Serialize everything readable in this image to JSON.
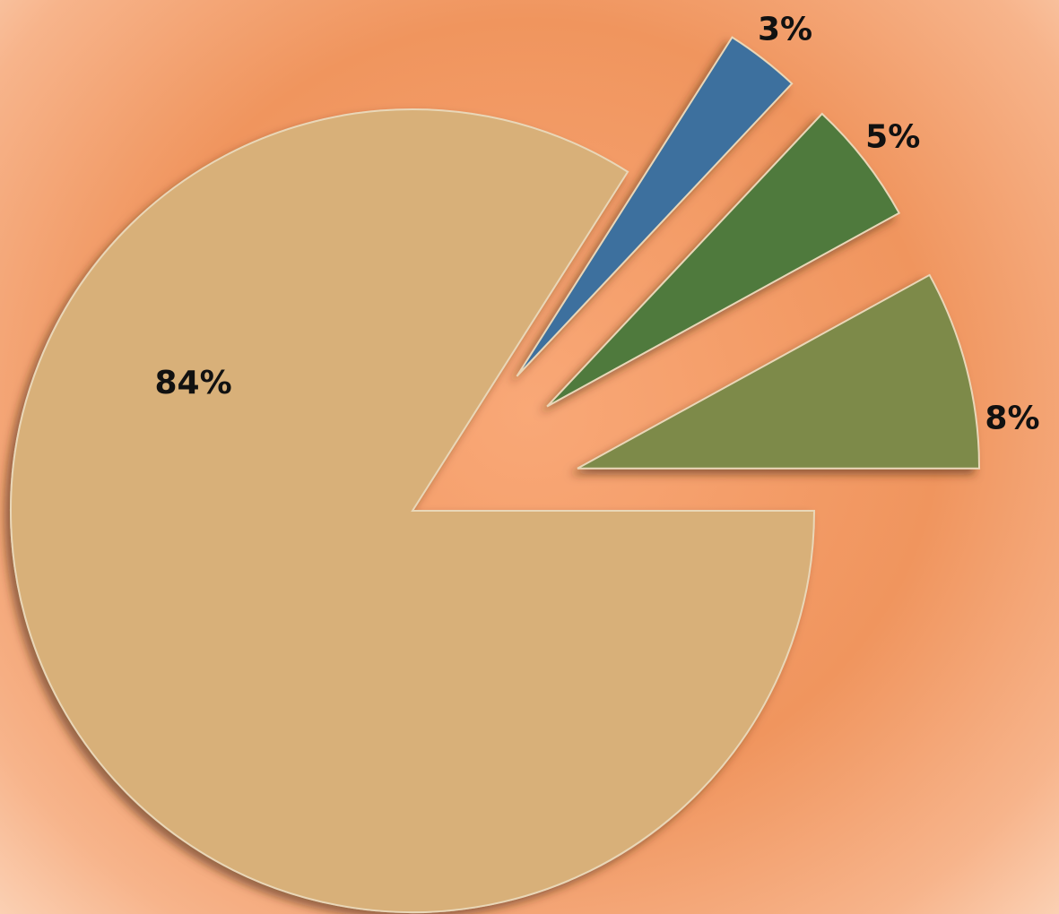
{
  "chart_data": {
    "type": "pie",
    "values": [
      3,
      5,
      8,
      84
    ],
    "value_labels": [
      "3%",
      "5%",
      "8%",
      "84%"
    ],
    "colors": [
      "#3d6f9e",
      "#4f7a3c",
      "#7d8a4a",
      "#d8b079"
    ],
    "exploded": [
      true,
      true,
      true,
      false
    ]
  }
}
